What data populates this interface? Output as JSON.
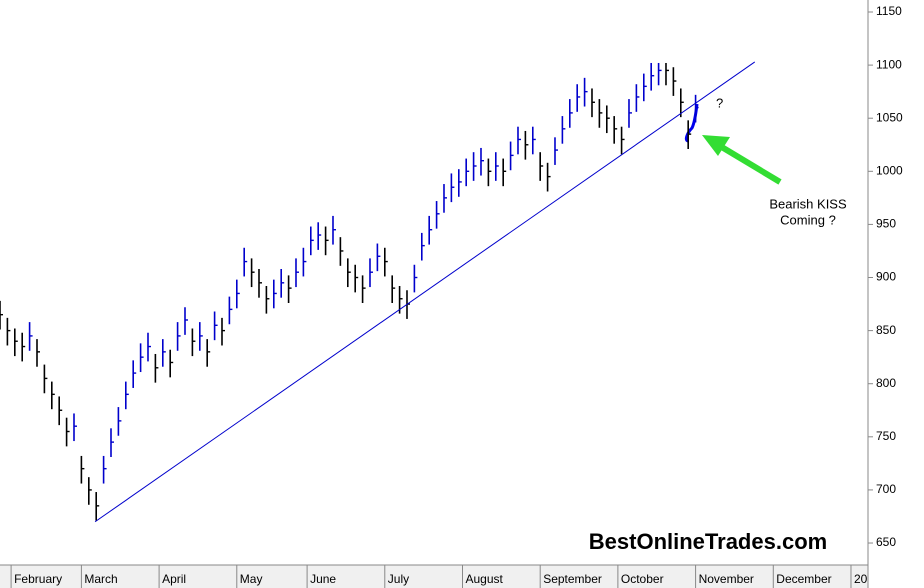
{
  "chart_data": {
    "type": "hlc",
    "x": [
      0,
      2,
      4,
      6,
      8,
      10,
      12,
      14,
      16,
      18,
      20,
      22,
      24,
      26,
      28,
      30,
      32,
      34,
      36,
      38,
      40,
      42,
      44,
      46,
      48,
      50,
      52,
      54,
      56,
      58,
      60,
      62,
      64,
      66,
      68,
      70,
      72,
      74,
      76,
      78,
      80,
      82,
      84,
      86,
      88,
      90,
      92,
      94,
      96,
      98,
      100,
      102,
      104,
      106,
      108,
      110,
      112,
      114,
      116,
      118,
      120,
      122,
      124,
      126,
      128,
      130,
      132,
      134,
      136,
      138,
      140,
      142,
      144,
      146,
      148,
      150,
      152,
      154,
      156,
      158,
      160,
      162,
      164,
      166,
      168,
      170,
      172,
      174,
      176,
      178,
      180,
      182,
      184,
      186,
      188
    ],
    "high": [
      878,
      862,
      852,
      848,
      858,
      842,
      818,
      802,
      788,
      768,
      772,
      732,
      712,
      698,
      732,
      758,
      778,
      802,
      822,
      838,
      848,
      828,
      842,
      832,
      858,
      872,
      852,
      858,
      842,
      868,
      862,
      882,
      898,
      928,
      918,
      908,
      892,
      898,
      908,
      902,
      918,
      928,
      948,
      952,
      948,
      958,
      938,
      918,
      912,
      902,
      918,
      932,
      928,
      902,
      892,
      888,
      912,
      942,
      958,
      972,
      988,
      998,
      1002,
      1012,
      1018,
      1022,
      1012,
      1018,
      1012,
      1028,
      1042,
      1038,
      1042,
      1018,
      1008,
      1032,
      1052,
      1068,
      1082,
      1088,
      1078,
      1068,
      1062,
      1052,
      1042,
      1068,
      1082,
      1092,
      1102,
      1102,
      1102,
      1098,
      1078,
      1048,
      1072
    ],
    "low": [
      851,
      836,
      826,
      821,
      831,
      816,
      791,
      776,
      761,
      741,
      746,
      706,
      686,
      671,
      706,
      731,
      751,
      776,
      796,
      811,
      821,
      801,
      816,
      806,
      831,
      846,
      826,
      831,
      816,
      841,
      836,
      856,
      871,
      901,
      891,
      881,
      866,
      871,
      881,
      876,
      891,
      901,
      921,
      926,
      921,
      931,
      911,
      891,
      886,
      876,
      891,
      906,
      901,
      876,
      866,
      861,
      886,
      916,
      931,
      946,
      961,
      971,
      976,
      986,
      991,
      996,
      986,
      991,
      986,
      1001,
      1016,
      1011,
      1016,
      991,
      981,
      1006,
      1026,
      1041,
      1056,
      1061,
      1051,
      1041,
      1036,
      1026,
      1016,
      1041,
      1056,
      1066,
      1076,
      1081,
      1081,
      1071,
      1051,
      1021,
      1046
    ],
    "close": [
      865,
      850,
      840,
      835,
      845,
      830,
      805,
      790,
      775,
      755,
      760,
      720,
      700,
      685,
      720,
      745,
      765,
      790,
      810,
      825,
      835,
      815,
      830,
      820,
      845,
      860,
      840,
      845,
      830,
      855,
      850,
      870,
      885,
      915,
      905,
      895,
      880,
      885,
      895,
      890,
      905,
      915,
      935,
      940,
      935,
      945,
      925,
      905,
      900,
      890,
      905,
      920,
      915,
      890,
      880,
      875,
      900,
      930,
      945,
      960,
      975,
      985,
      990,
      1000,
      1005,
      1010,
      1000,
      1005,
      1000,
      1015,
      1030,
      1025,
      1030,
      1005,
      995,
      1020,
      1040,
      1055,
      1070,
      1075,
      1065,
      1055,
      1050,
      1040,
      1030,
      1055,
      1070,
      1080,
      1090,
      1095,
      1095,
      1085,
      1065,
      1035,
      1060
    ],
    "up_color": "#0000cc",
    "down_color": "#000000",
    "trendline": {
      "x": [
        25.7,
        204
      ],
      "values": [
        670,
        1103
      ],
      "color": "#0000cc"
    },
    "xlim": [
      0,
      234.6
    ],
    "xticks": [
      {
        "value": 3,
        "label": "February"
      },
      {
        "value": 22,
        "label": "March"
      },
      {
        "value": 43,
        "label": "April"
      },
      {
        "value": 64,
        "label": "May"
      },
      {
        "value": 83,
        "label": "June"
      },
      {
        "value": 104,
        "label": "July"
      },
      {
        "value": 125,
        "label": "August"
      },
      {
        "value": 146,
        "label": "September"
      },
      {
        "value": 167,
        "label": "October"
      },
      {
        "value": 188,
        "label": "November"
      },
      {
        "value": 209,
        "label": "December"
      },
      {
        "value": 230,
        "label": "20"
      }
    ],
    "ylim": [
      629.3,
      1161.3
    ],
    "yticks": [
      650,
      700,
      750,
      800,
      850,
      900,
      950,
      1000,
      1050,
      1100,
      1150
    ],
    "annotations": {
      "question": "?",
      "callout_line1": "Bearish KISS",
      "callout_line2": "Coming ?",
      "watermark": "BestOnlineTrades.com"
    }
  }
}
